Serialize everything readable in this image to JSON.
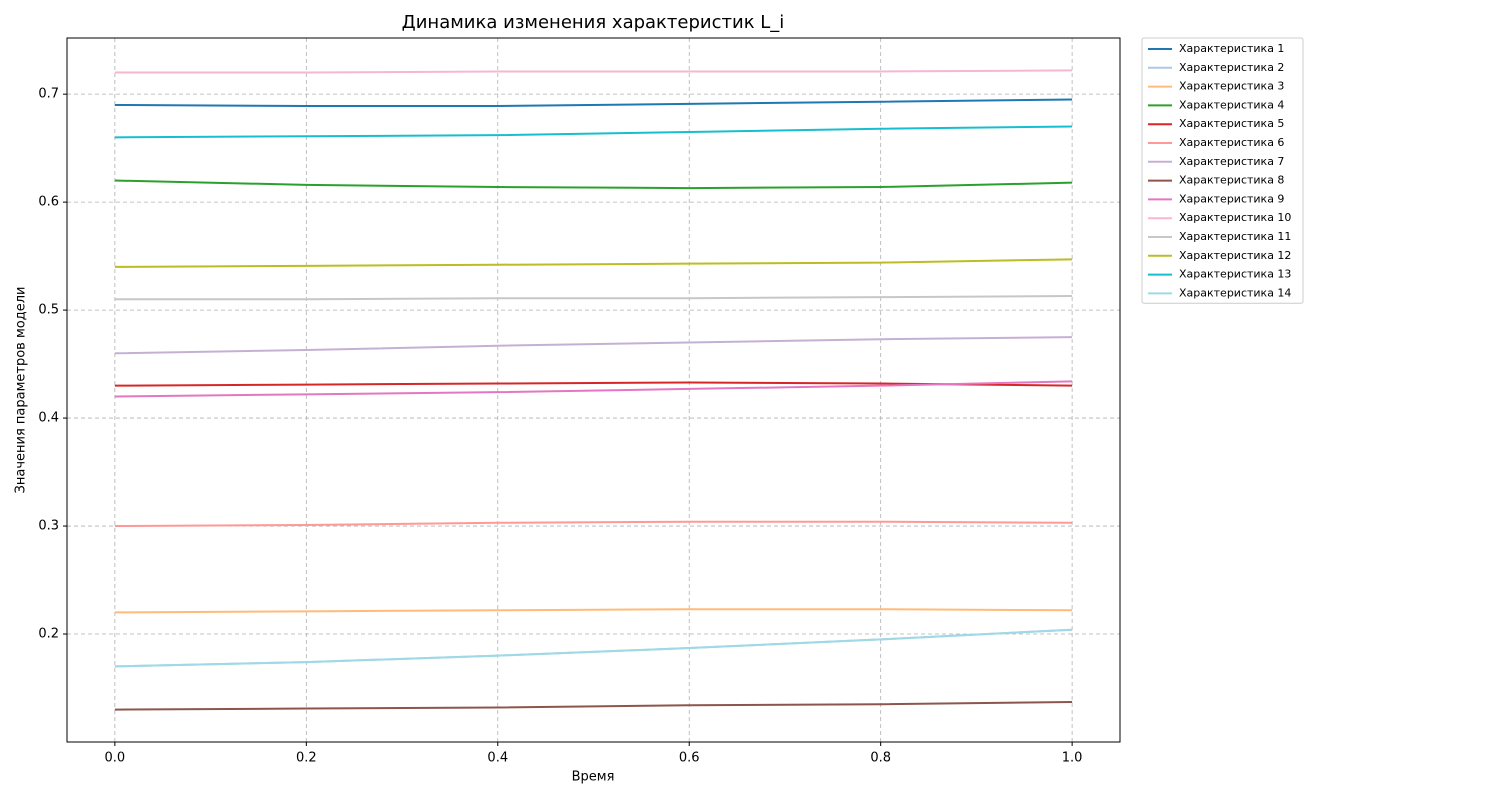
{
  "chart_data": {
    "type": "line",
    "title": "Динамика изменения характеристик L_i",
    "xlabel": "Время",
    "ylabel": "Значения параметров модели",
    "x": [
      0,
      0.2,
      0.4,
      0.6,
      0.8,
      1
    ],
    "xlim": [
      -0.05,
      1.05
    ],
    "ylim": [
      0.1,
      0.752
    ],
    "xticks": [
      {
        "value": 0,
        "label": "0.0"
      },
      0.2,
      0.4,
      0.6,
      0.8,
      {
        "value": 1,
        "label": "1.0"
      }
    ],
    "yticks": [
      0.2,
      0.3,
      0.4,
      0.5,
      0.6,
      0.7
    ],
    "grid": true,
    "legend": "outside-upper-right",
    "series": [
      {
        "name": "Характеристика 1",
        "color": "#1f77b4",
        "values": [
          0.69,
          0.689,
          0.689,
          0.691,
          0.693,
          0.695
        ]
      },
      {
        "name": "Характеристика 2",
        "color": "#aec7e8",
        "values": [
          0.17,
          0.174,
          0.18,
          0.187,
          0.195,
          0.204
        ]
      },
      {
        "name": "Характеристика 3",
        "color": "#ffbb78",
        "values": [
          0.22,
          0.221,
          0.222,
          0.223,
          0.223,
          0.222
        ]
      },
      {
        "name": "Характеристика 4",
        "color": "#2ca02c",
        "values": [
          0.62,
          0.616,
          0.614,
          0.613,
          0.614,
          0.618
        ]
      },
      {
        "name": "Характеристика 5",
        "color": "#d62728",
        "values": [
          0.43,
          0.431,
          0.432,
          0.433,
          0.432,
          0.43
        ]
      },
      {
        "name": "Характеристика 6",
        "color": "#ff9896",
        "values": [
          0.3,
          0.301,
          0.303,
          0.304,
          0.304,
          0.303
        ]
      },
      {
        "name": "Характеристика 7",
        "color": "#c5b0d5",
        "values": [
          0.46,
          0.463,
          0.467,
          0.47,
          0.473,
          0.475
        ]
      },
      {
        "name": "Характеристика 8",
        "color": "#8c564b",
        "values": [
          0.13,
          0.131,
          0.132,
          0.134,
          0.135,
          0.137
        ]
      },
      {
        "name": "Характеристика 9",
        "color": "#e377c2",
        "values": [
          0.42,
          0.422,
          0.424,
          0.427,
          0.43,
          0.434
        ]
      },
      {
        "name": "Характеристика 10",
        "color": "#f7b6d2",
        "values": [
          0.72,
          0.72,
          0.721,
          0.721,
          0.721,
          0.722
        ]
      },
      {
        "name": "Характеристика 11",
        "color": "#c7c7c7",
        "values": [
          0.51,
          0.51,
          0.511,
          0.511,
          0.512,
          0.513
        ]
      },
      {
        "name": "Характеристика 12",
        "color": "#bcbd22",
        "values": [
          0.54,
          0.541,
          0.542,
          0.543,
          0.544,
          0.547
        ]
      },
      {
        "name": "Характеристика 13",
        "color": "#17becf",
        "values": [
          0.66,
          0.661,
          0.662,
          0.665,
          0.668,
          0.67
        ]
      },
      {
        "name": "Характеристика 14",
        "color": "#9edae5",
        "values": [
          0.17,
          0.174,
          0.18,
          0.187,
          0.195,
          0.204
        ]
      }
    ]
  }
}
